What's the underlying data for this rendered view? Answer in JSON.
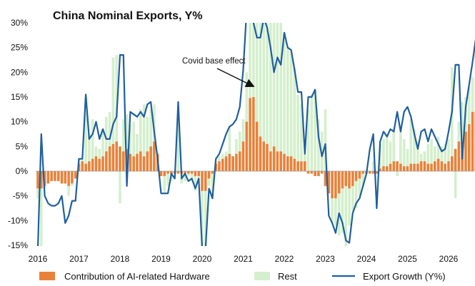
{
  "chart_data": {
    "type": "bar",
    "title": "China Nominal Exports, Y%",
    "xlabel": "",
    "ylabel": "",
    "x_start": "2016-01",
    "ylim": [
      -15,
      30
    ],
    "yticks": [
      30,
      25,
      20,
      15,
      10,
      5,
      0,
      -5,
      -10,
      -15
    ],
    "ytick_labels": [
      "30%",
      "25%",
      "20%",
      "15%",
      "10%",
      "5%",
      "0%",
      "-5%",
      "-10%",
      "-15%"
    ],
    "xtick_labels": [
      "2016",
      "2017",
      "2018",
      "2019",
      "2020",
      "2021",
      "2022",
      "2023",
      "2024",
      "2025",
      "2026"
    ],
    "legend": {
      "position": "bottom"
    },
    "series": [
      {
        "name": "Contribution of AI-related Hardware",
        "color": "#E8823A",
        "values": [
          -3.5,
          -3.5,
          -3,
          -2.5,
          -2,
          -2,
          -2,
          -2.5,
          -2.5,
          -3,
          -2.5,
          -1.5,
          1.5,
          2,
          1.5,
          2,
          2.5,
          3,
          2.5,
          3,
          4,
          5,
          5.5,
          6,
          5,
          4,
          4.5,
          3.5,
          3,
          3.5,
          4,
          3,
          4,
          5,
          6,
          3.5,
          -1,
          -1,
          -0.5,
          -0.5,
          -0.5,
          -0.5,
          -0.5,
          -0.5,
          -0.5,
          -0.5,
          -1,
          -1,
          -4,
          -4,
          -1.5,
          -0.5,
          1.5,
          2,
          2.5,
          3,
          3.5,
          3,
          3.5,
          4,
          6,
          10,
          14.8,
          15,
          10,
          7,
          6,
          5.5,
          4,
          5,
          4,
          4,
          3.5,
          3,
          3,
          2.5,
          2,
          2,
          2,
          -0.5,
          -0.5,
          -1,
          -1,
          -0.5,
          -3,
          -4.5,
          -5.5,
          -5.5,
          -4.5,
          -3.5,
          -3,
          -3.5,
          -3,
          -2,
          -1.5,
          -0.5,
          -0.5,
          -0.5,
          -0.5,
          -0.5,
          0.5,
          1,
          1,
          1.5,
          2,
          2,
          1.5,
          1,
          1,
          1.5,
          1.5,
          1.5,
          2,
          2,
          1.5,
          1.5,
          2,
          2.5,
          2,
          1.5,
          2,
          3,
          4.5,
          6,
          6,
          8,
          9.5,
          12,
          12
        ],
        "stack_ends": [
          -5.5,
          -15.5,
          -3.5,
          -2,
          -1.5,
          -2,
          -1.5,
          -2,
          -1.5,
          -5,
          -3,
          -1,
          2.5,
          2.5,
          15,
          7.5,
          10.5,
          5,
          4.5,
          8.5,
          11,
          12,
          23,
          23.5,
          -6.5,
          10.5,
          11.5,
          9.5,
          10,
          7.5,
          12.5,
          13.5,
          11,
          12.5,
          13.5,
          4,
          -0.5,
          -4.5,
          -3,
          -2,
          -0.5,
          11.5,
          -2.5,
          -2,
          -1,
          -1.5,
          -4,
          -2,
          -15.5,
          -15.5,
          -3,
          -5.5,
          2,
          3,
          3.5,
          4,
          9,
          2.5,
          6.5,
          8,
          10.5,
          20,
          30,
          30,
          30,
          30,
          30,
          30,
          30,
          30,
          30,
          30,
          28,
          25,
          24,
          21,
          15.5,
          13.5,
          3.5,
          12.5,
          15.5,
          16.5,
          10.5,
          8,
          12.5,
          -4,
          -10.5,
          -11,
          -13,
          -12.5,
          -15.5,
          -11,
          -8,
          -7.5,
          -5,
          -3,
          -0.5,
          -0.5,
          2,
          -0.5,
          5.5,
          6.5,
          7.5,
          6,
          8.5,
          -1,
          8,
          6.5,
          4.5,
          10.5,
          8.5,
          6,
          3.5,
          4,
          5.5,
          6.5,
          5,
          7,
          5,
          5.5,
          6.5,
          21,
          -5.5,
          10,
          14,
          15,
          17,
          19,
          25
        ],
        "stack_notes": "second stacked layer ends; rest = end - ai"
      },
      {
        "name": "Rest",
        "color": "#D4EFCC"
      },
      {
        "name": "Export Growth (Y%)",
        "color": "#1F5F9F",
        "values": [
          -15.5,
          7.5,
          -5,
          -6.5,
          -7,
          -7,
          -6.5,
          -5,
          -10.5,
          -9,
          -6,
          -6,
          2.5,
          2.5,
          15.5,
          6.5,
          7.5,
          10,
          6.5,
          8.5,
          6.5,
          6.5,
          9.5,
          11,
          23.5,
          23.5,
          -3,
          12,
          11.5,
          11,
          12,
          11,
          13.5,
          14,
          8,
          2.5,
          -4.5,
          -4.5,
          -4.5,
          -0.5,
          -1.5,
          14,
          -1.5,
          -0.5,
          -2,
          -1.5,
          -3.5,
          -1.5,
          -15.5,
          -15.5,
          -3.5,
          -5.5,
          2.5,
          3.5,
          5.5,
          7.5,
          9,
          9.5,
          10.5,
          13,
          20.5,
          32.5,
          32.5,
          30,
          27,
          27,
          31,
          29,
          25,
          20,
          23,
          21.5,
          28,
          25,
          24.5,
          20.5,
          16,
          16,
          3.5,
          15,
          15,
          16.5,
          7,
          3,
          5.5,
          -9,
          -10.5,
          -12.5,
          -8.5,
          -10.5,
          -14,
          -14.5,
          -8.5,
          -6.5,
          -5.5,
          -3,
          -0.5,
          4.5,
          7.5,
          -7.5,
          6,
          8,
          7,
          8.5,
          8,
          12,
          8,
          12,
          13,
          11,
          7.5,
          4.5,
          8,
          8.5,
          6,
          8.5,
          7,
          5.5,
          4,
          4.5,
          8,
          12,
          21.5,
          21.5,
          2.5,
          13,
          17.5,
          22,
          27
        ]
      }
    ],
    "annotations": [
      {
        "text": "Covid base effect",
        "x": "2020-06",
        "y": 16
      }
    ]
  }
}
